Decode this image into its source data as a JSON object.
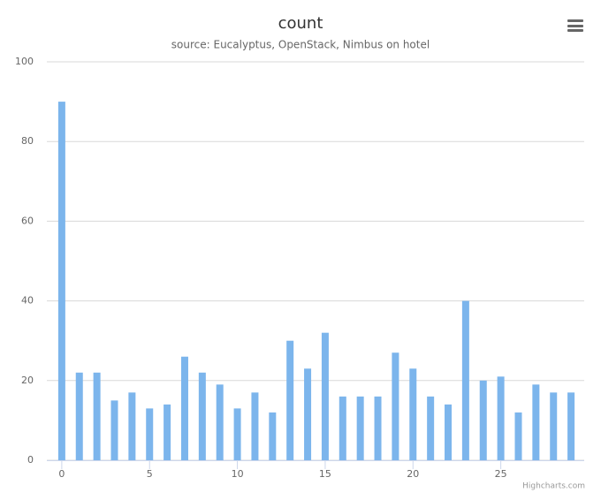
{
  "chart_data": {
    "type": "bar",
    "title": "count",
    "subtitle": "source: Eucalyptus, OpenStack, Nimbus on hotel",
    "credits": "Highcharts.com",
    "x": [
      0,
      1,
      2,
      3,
      4,
      5,
      6,
      7,
      8,
      9,
      10,
      11,
      12,
      13,
      14,
      15,
      16,
      17,
      18,
      19,
      20,
      21,
      22,
      23,
      24,
      25,
      26,
      27,
      28,
      29
    ],
    "values": [
      90,
      22,
      22,
      15,
      17,
      13,
      14,
      26,
      22,
      19,
      13,
      17,
      12,
      30,
      23,
      32,
      16,
      16,
      16,
      27,
      23,
      16,
      14,
      40,
      20,
      21,
      12,
      19,
      17,
      17
    ],
    "color": "#7cb5ec",
    "xlim": [
      -0.85,
      29.75
    ],
    "xticks": [
      0,
      5,
      10,
      15,
      20,
      25
    ],
    "ylim": [
      0,
      100
    ],
    "yticks": [
      0,
      20,
      40,
      60,
      80,
      100
    ],
    "grid": true
  }
}
